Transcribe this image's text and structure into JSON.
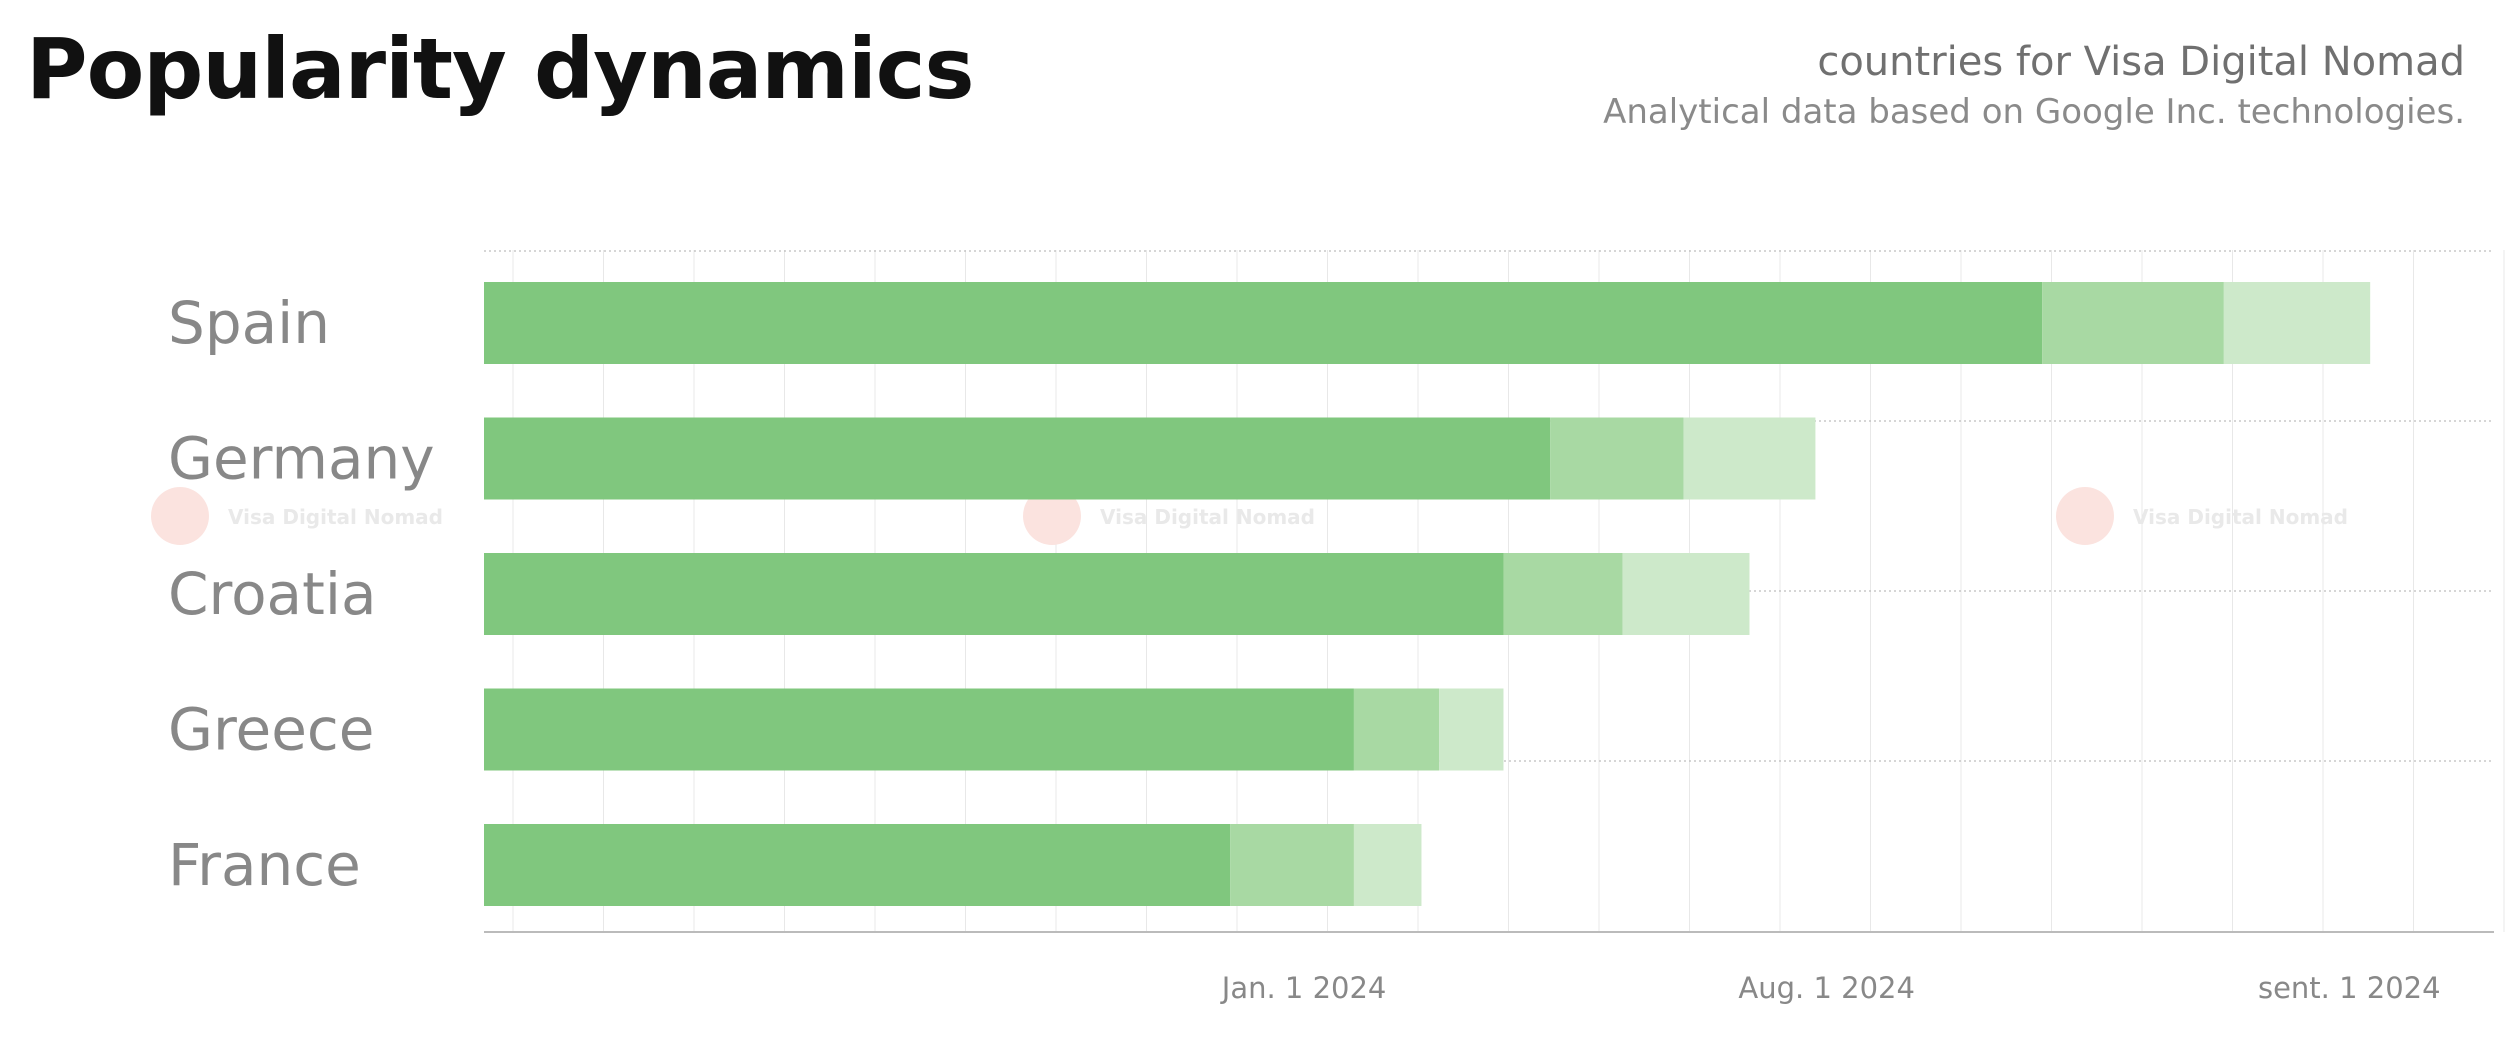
{
  "header": {
    "title": "Popularity dynamics",
    "subtitle": "countries for Visa Digital Nomad",
    "source_note": "Analytical data based on Google Inc. technologies."
  },
  "watermark": {
    "text": "Visa Digital Nomad",
    "icon": "logo-icon"
  },
  "colors": {
    "segment_dark": "#80c77e",
    "segment_mid": "#a8d9a3",
    "segment_light": "#cde9ca",
    "grid": "#e8e8e8",
    "axis": "#bbbbbb",
    "label": "#888888",
    "watermark_icon": "#fbe3df",
    "watermark_text": "#e9e9e9"
  },
  "chart_data": {
    "type": "bar",
    "orientation": "horizontal",
    "stacked": true,
    "categories": [
      "Spain",
      "Germany",
      "Croatia",
      "Greece",
      "France"
    ],
    "series": [
      {
        "values": [
          193.8,
          132.6,
          126.8,
          108.2,
          92.8
        ]
      },
      {
        "values": [
          22.6,
          16.6,
          14.8,
          10.6,
          15.4
        ]
      },
      {
        "values": [
          18.2,
          16.4,
          15.8,
          8.0,
          8.4
        ]
      }
    ],
    "xlim": [
      0,
      250
    ],
    "x_ticks": [
      {
        "value": 102,
        "label": "Jan. 1 2024"
      },
      {
        "value": 167,
        "label": "Aug. 1 2024"
      },
      {
        "value": 232,
        "label": "sent. 1 2024"
      }
    ],
    "grid": true,
    "legend": "none"
  }
}
